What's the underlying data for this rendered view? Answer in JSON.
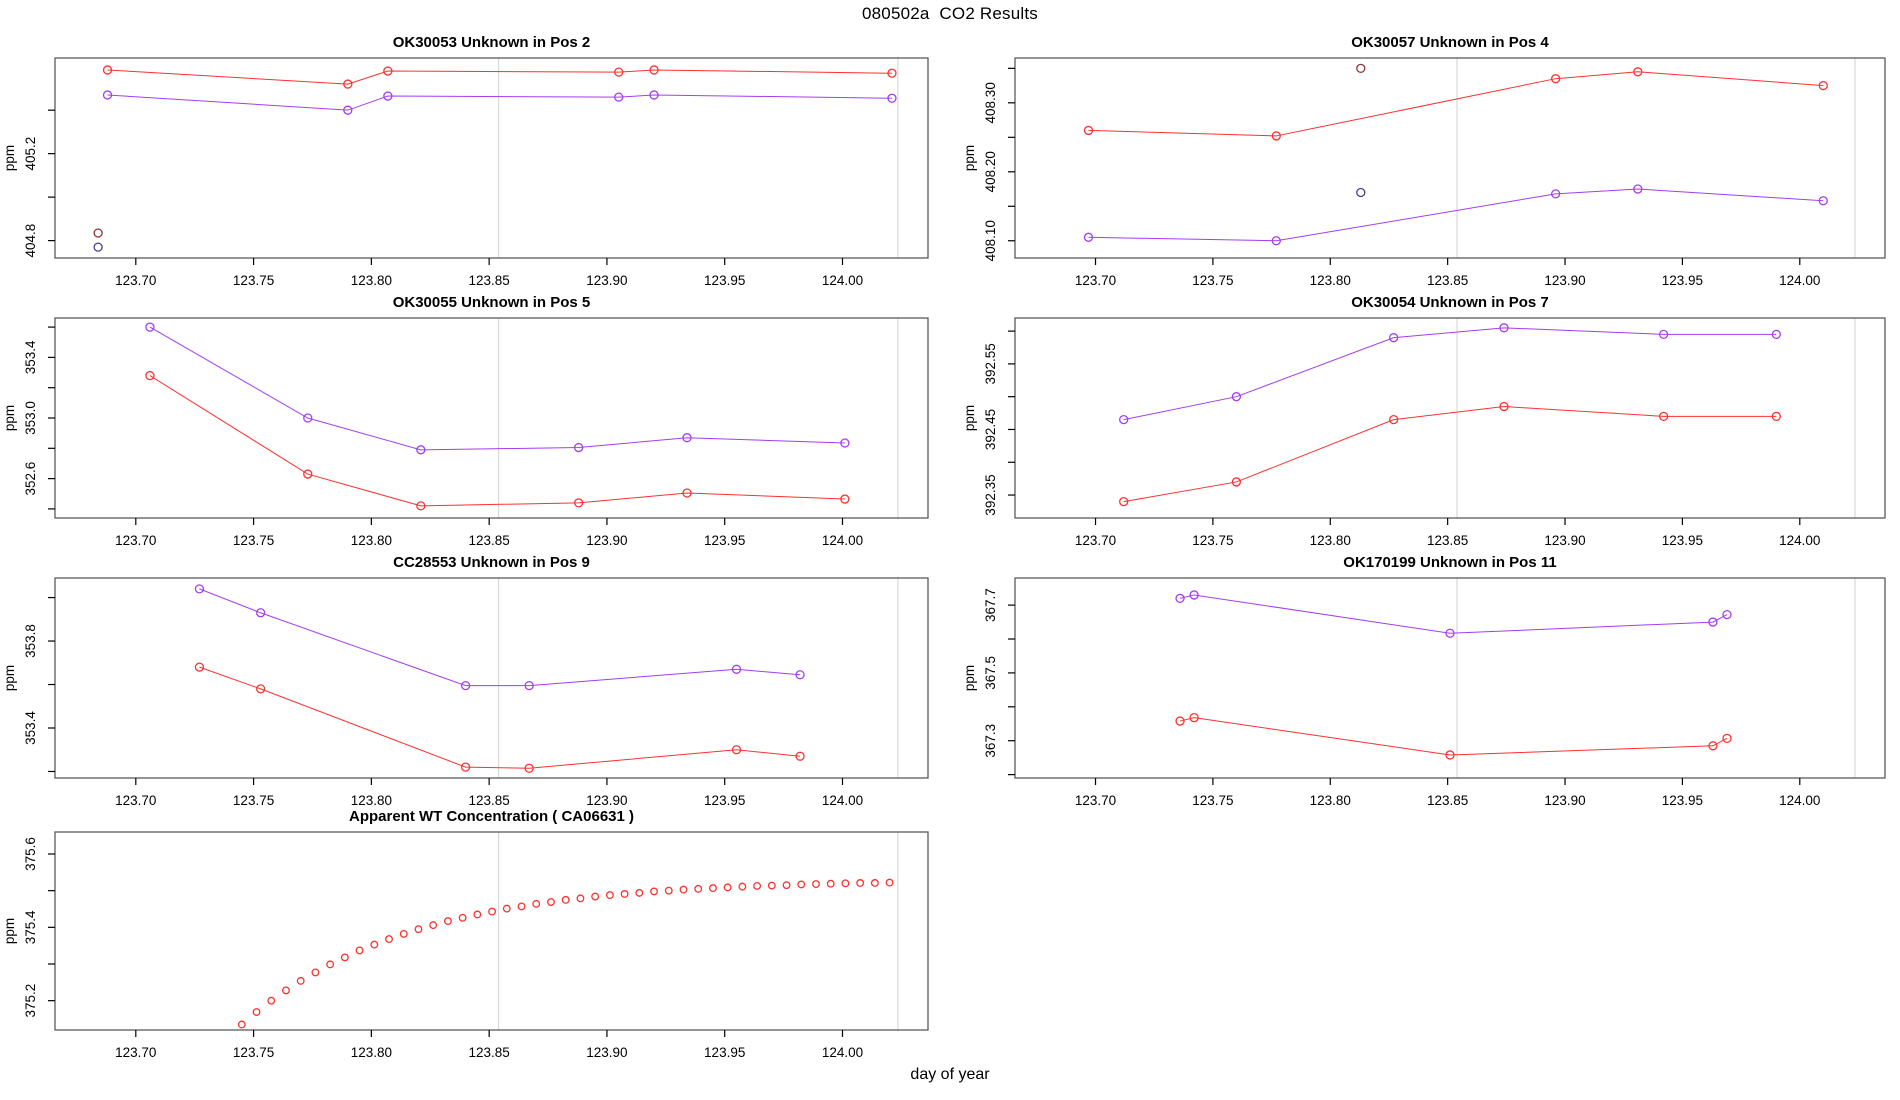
{
  "page_title": "080502a  CO2 Results",
  "xlabel": "day of year",
  "ylabel": "ppm",
  "colors": {
    "red": "#FF3030",
    "purple": "#A43DF2",
    "dark_red": "#8B3535",
    "dark_purple": "#4F3A93",
    "refline": "#D9D9D9",
    "frame": "#5A5A5A"
  },
  "x_axis": {
    "lim": [
      123.6657,
      124.0363
    ],
    "ticks": [
      123.7,
      123.75,
      123.8,
      123.85,
      123.9,
      123.95,
      124.0
    ],
    "tick_labels": [
      "123.70",
      "123.75",
      "123.80",
      "123.85",
      "123.90",
      "123.95",
      "124.00"
    ]
  },
  "ref_lines_x": [
    123.854,
    124.0235
  ],
  "chart_data": [
    {
      "id": "pos2",
      "type": "line",
      "title": "OK30053   Unknown in Pos 2",
      "col": "left",
      "row": 0,
      "ylim": [
        404.72,
        405.64
      ],
      "yticks": [
        {
          "v": 404.8,
          "label": "404.8"
        },
        {
          "v": 405.0
        },
        {
          "v": 405.2,
          "label": "405.2"
        },
        {
          "v": 405.4
        }
      ],
      "series": [
        {
          "label": "red",
          "color": "red",
          "x": [
            123.688,
            123.79,
            123.807,
            123.905,
            123.92,
            124.021
          ],
          "y": [
            405.585,
            405.52,
            405.58,
            405.575,
            405.585,
            405.57
          ]
        },
        {
          "label": "purple",
          "color": "purple",
          "x": [
            123.688,
            123.79,
            123.807,
            123.905,
            123.92,
            124.021
          ],
          "y": [
            405.47,
            405.4,
            405.465,
            405.46,
            405.47,
            405.455
          ]
        },
        {
          "label": "outlier-red",
          "color": "dark_red",
          "marker_only": true,
          "x": [
            123.684
          ],
          "y": [
            404.835
          ]
        },
        {
          "label": "outlier-purple",
          "color": "dark_purple",
          "marker_only": true,
          "x": [
            123.684
          ],
          "y": [
            404.77
          ]
        }
      ]
    },
    {
      "id": "pos4",
      "type": "line",
      "title": "OK30057   Unknown in Pos 4",
      "col": "right",
      "row": 0,
      "ylim": [
        408.075,
        408.365
      ],
      "yticks": [
        {
          "v": 408.1,
          "label": "408.10"
        },
        {
          "v": 408.15
        },
        {
          "v": 408.2,
          "label": "408.20"
        },
        {
          "v": 408.25
        },
        {
          "v": 408.3,
          "label": "408.30"
        },
        {
          "v": 408.35
        }
      ],
      "series": [
        {
          "label": "red",
          "color": "red",
          "x": [
            123.697,
            123.777,
            123.896,
            123.931,
            124.01
          ],
          "y": [
            408.26,
            408.252,
            408.335,
            408.345,
            408.325
          ]
        },
        {
          "label": "purple",
          "color": "purple",
          "x": [
            123.697,
            123.777,
            123.896,
            123.931,
            124.01
          ],
          "y": [
            408.105,
            408.1,
            408.168,
            408.175,
            408.158
          ]
        },
        {
          "label": "outlier-red",
          "color": "dark_red",
          "marker_only": true,
          "x": [
            123.813
          ],
          "y": [
            408.35
          ]
        },
        {
          "label": "outlier-purple",
          "color": "dark_purple",
          "marker_only": true,
          "x": [
            123.813
          ],
          "y": [
            408.17
          ]
        }
      ]
    },
    {
      "id": "pos5",
      "type": "line",
      "title": "OK30055   Unknown in Pos 5",
      "col": "left",
      "row": 1,
      "ylim": [
        352.34,
        353.66
      ],
      "yticks": [
        {
          "v": 352.4
        },
        {
          "v": 352.6,
          "label": "352.6"
        },
        {
          "v": 352.8
        },
        {
          "v": 353.0,
          "label": "353.0"
        },
        {
          "v": 353.2
        },
        {
          "v": 353.4,
          "label": "353.4"
        },
        {
          "v": 353.6
        }
      ],
      "series": [
        {
          "label": "red",
          "color": "red",
          "x": [
            123.706,
            123.773,
            123.821,
            123.888,
            123.934,
            124.001
          ],
          "y": [
            353.28,
            352.63,
            352.42,
            352.44,
            352.505,
            352.465
          ]
        },
        {
          "label": "purple",
          "color": "purple",
          "x": [
            123.706,
            123.773,
            123.821,
            123.888,
            123.934,
            124.001
          ],
          "y": [
            353.6,
            353.0,
            352.79,
            352.805,
            352.87,
            352.835
          ]
        }
      ]
    },
    {
      "id": "pos7",
      "type": "line",
      "title": "OK30054   Unknown in Pos 7",
      "col": "right",
      "row": 1,
      "ylim": [
        392.315,
        392.62
      ],
      "yticks": [
        {
          "v": 392.35,
          "label": "392.35"
        },
        {
          "v": 392.4
        },
        {
          "v": 392.45,
          "label": "392.45"
        },
        {
          "v": 392.5
        },
        {
          "v": 392.55,
          "label": "392.55"
        },
        {
          "v": 392.6
        }
      ],
      "series": [
        {
          "label": "red",
          "color": "red",
          "x": [
            123.712,
            123.76,
            123.827,
            123.874,
            123.942,
            123.99
          ],
          "y": [
            392.34,
            392.37,
            392.465,
            392.485,
            392.47,
            392.47
          ]
        },
        {
          "label": "purple",
          "color": "purple",
          "x": [
            123.712,
            123.76,
            123.827,
            123.874,
            123.942,
            123.99
          ],
          "y": [
            392.465,
            392.5,
            392.59,
            392.605,
            392.595,
            392.595
          ]
        }
      ]
    },
    {
      "id": "pos9",
      "type": "line",
      "title": "CC28553   Unknown in Pos 9",
      "col": "left",
      "row": 2,
      "ylim": [
        353.17,
        354.09
      ],
      "yticks": [
        {
          "v": 353.2
        },
        {
          "v": 353.4,
          "label": "353.4"
        },
        {
          "v": 353.6
        },
        {
          "v": 353.8,
          "label": "353.8"
        },
        {
          "v": 354.0
        }
      ],
      "series": [
        {
          "label": "red",
          "color": "red",
          "x": [
            123.727,
            123.753,
            123.84,
            123.867,
            123.955,
            123.982
          ],
          "y": [
            353.68,
            353.58,
            353.22,
            353.215,
            353.3,
            353.27
          ]
        },
        {
          "label": "purple",
          "color": "purple",
          "x": [
            123.727,
            123.753,
            123.84,
            123.867,
            123.955,
            123.982
          ],
          "y": [
            354.04,
            353.93,
            353.595,
            353.595,
            353.67,
            353.645
          ]
        }
      ]
    },
    {
      "id": "pos11",
      "type": "line",
      "title": "OK170199   Unknown in Pos 11",
      "col": "right",
      "row": 2,
      "ylim": [
        367.19,
        367.78
      ],
      "yticks": [
        {
          "v": 367.2
        },
        {
          "v": 367.3,
          "label": "367.3"
        },
        {
          "v": 367.4
        },
        {
          "v": 367.5,
          "label": "367.5"
        },
        {
          "v": 367.6
        },
        {
          "v": 367.7,
          "label": "367.7"
        }
      ],
      "series": [
        {
          "label": "red",
          "color": "red",
          "x": [
            123.736,
            123.742,
            123.851,
            123.963,
            123.969
          ],
          "y": [
            367.358,
            367.368,
            367.258,
            367.285,
            367.307
          ]
        },
        {
          "label": "purple",
          "color": "purple",
          "x": [
            123.736,
            123.742,
            123.851,
            123.963,
            123.969
          ],
          "y": [
            367.72,
            367.73,
            367.617,
            367.65,
            367.672
          ]
        }
      ]
    },
    {
      "id": "wt",
      "type": "scatter",
      "title": "Apparent WT Concentration ( CA06631 )",
      "col": "left",
      "row": 3,
      "ylim": [
        375.12,
        375.66
      ],
      "yticks": [
        {
          "v": 375.2,
          "label": "375.2"
        },
        {
          "v": 375.3
        },
        {
          "v": 375.4,
          "label": "375.4"
        },
        {
          "v": 375.5
        },
        {
          "v": 375.6,
          "label": "375.6"
        }
      ],
      "series": [
        {
          "label": "apparent-wt",
          "color": "red",
          "marker_only": true,
          "r": 3.3,
          "x": [
            123.745,
            123.75125,
            123.7575,
            123.76375,
            123.77,
            123.77625,
            123.7825,
            123.78875,
            123.795,
            123.80125,
            123.8075,
            123.81375,
            123.82,
            123.82625,
            123.8325,
            123.83875,
            123.845,
            123.85125,
            123.8575,
            123.86375,
            123.87,
            123.87625,
            123.8825,
            123.88875,
            123.895,
            123.90125,
            123.9075,
            123.91375,
            123.92,
            123.92625,
            123.9325,
            123.93875,
            123.945,
            123.95125,
            123.9575,
            123.96375,
            123.97,
            123.97625,
            123.9825,
            123.98875,
            123.995,
            124.00125,
            124.0075,
            124.01375,
            124.02
          ],
          "y": [
            375.135,
            375.169,
            375.2,
            375.228,
            375.254,
            375.277,
            375.299,
            375.318,
            375.337,
            375.353,
            375.368,
            375.382,
            375.395,
            375.406,
            375.417,
            375.426,
            375.435,
            375.443,
            375.451,
            375.457,
            375.464,
            375.469,
            375.475,
            375.479,
            375.484,
            375.488,
            375.491,
            375.494,
            375.498,
            375.5,
            375.503,
            375.505,
            375.507,
            375.509,
            375.511,
            375.513,
            375.514,
            375.515,
            375.517,
            375.518,
            375.519,
            375.52,
            375.521,
            375.521,
            375.522
          ]
        }
      ]
    }
  ]
}
